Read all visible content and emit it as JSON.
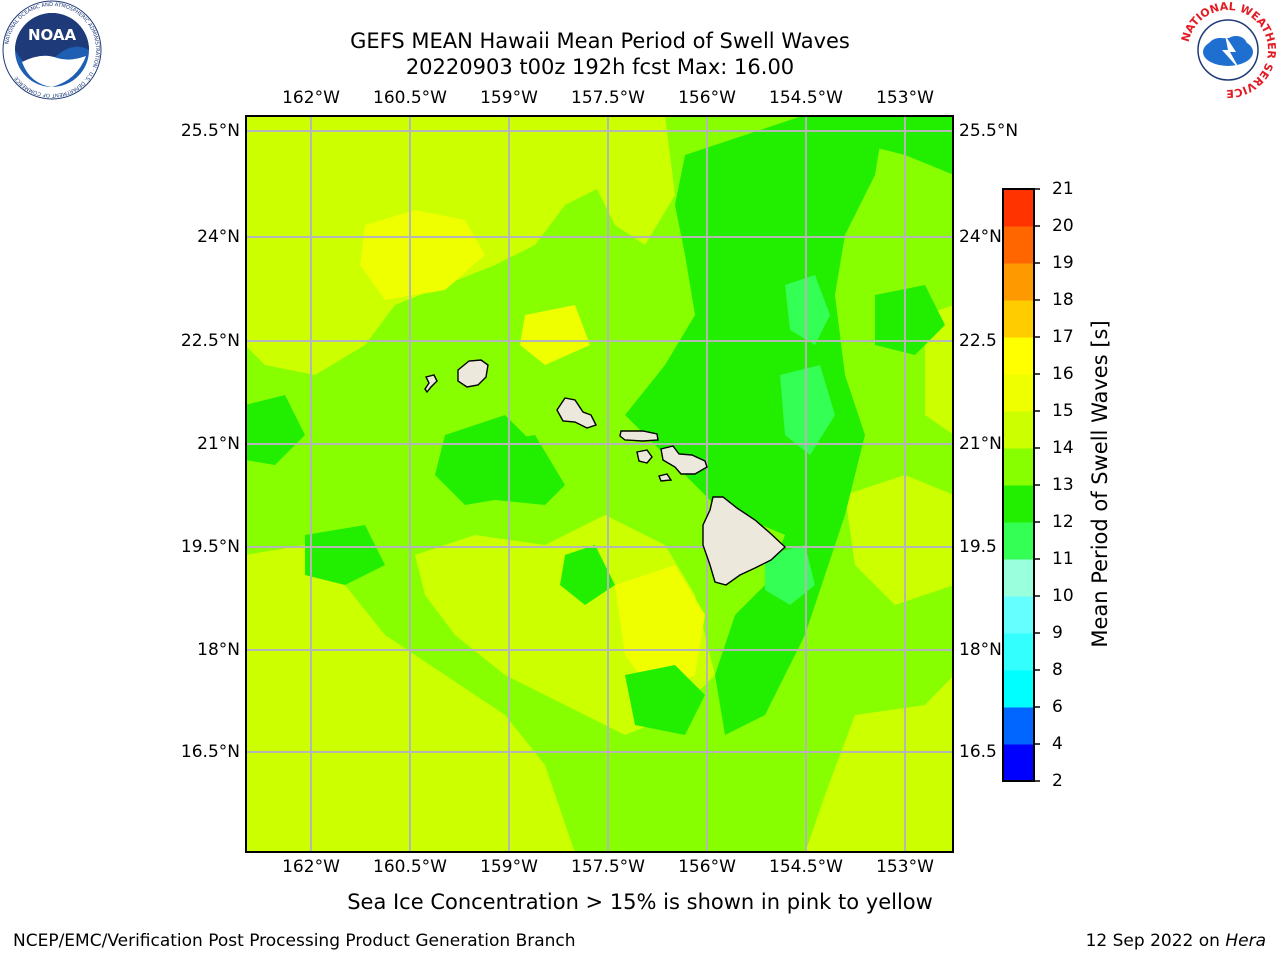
{
  "title": {
    "line1": "GEFS MEAN Hawaii Mean Period of Swell Waves",
    "line2": "20220903 t00z 192h fcst   Max: 16.00"
  },
  "map": {
    "lon_ticks": [
      "162°W",
      "160.5°W",
      "159°W",
      "157.5°W",
      "156°W",
      "154.5°W",
      "153°W"
    ],
    "lat_ticks": [
      "25.5°N",
      "24°N",
      "22.5°N",
      "21°N",
      "19.5°N",
      "18°N",
      "16.5°N"
    ],
    "lat_ticks_right": [
      "25.5°N",
      "24°N",
      "22.5",
      "21°N",
      "19.5",
      "18°N",
      "16.5"
    ],
    "lon_range": [
      -163,
      -152.7
    ],
    "lat_range": [
      15,
      25.7
    ],
    "gridlines": true,
    "islands": [
      "Niihau",
      "Kauai",
      "Oahu",
      "Molokai",
      "Lanai",
      "Maui",
      "Kahoolawe",
      "Hawaii"
    ],
    "colors": {
      "grid": "#b5b5b5",
      "land": "#ece9dc",
      "coast": "#000000"
    }
  },
  "colorbar": {
    "label": "Mean Period of Swell Waves [s]",
    "levels": [
      "2",
      "4",
      "6",
      "8",
      "9",
      "10",
      "11",
      "12",
      "13",
      "14",
      "15",
      "16",
      "17",
      "18",
      "19",
      "20",
      "21"
    ],
    "colors": [
      "#0000ff",
      "#0066ff",
      "#00ffff",
      "#33ffff",
      "#66ffff",
      "#99ffdd",
      "#33ff55",
      "#22ee00",
      "#88ff00",
      "#ccff00",
      "#f0ff00",
      "#ffff00",
      "#ffcc00",
      "#ff9900",
      "#ff6600",
      "#ff3300",
      "#ff0000"
    ]
  },
  "footer": {
    "sea_ice_note": "Sea Ice Concentration > 15% is shown in pink to yellow",
    "credit": "NCEP/EMC/Verification Post Processing Product Generation Branch",
    "date": "12 Sep 2022 on ",
    "machine": "Hera"
  },
  "logos": {
    "noaa": {
      "text": "NOAA",
      "ring": "NATIONAL OCEANIC AND ATMOSPHERIC ADMINISTRATION · U.S. DEPARTMENT OF COMMERCE"
    },
    "nws": {
      "ring": "NATIONAL WEATHER SERVICE"
    }
  }
}
